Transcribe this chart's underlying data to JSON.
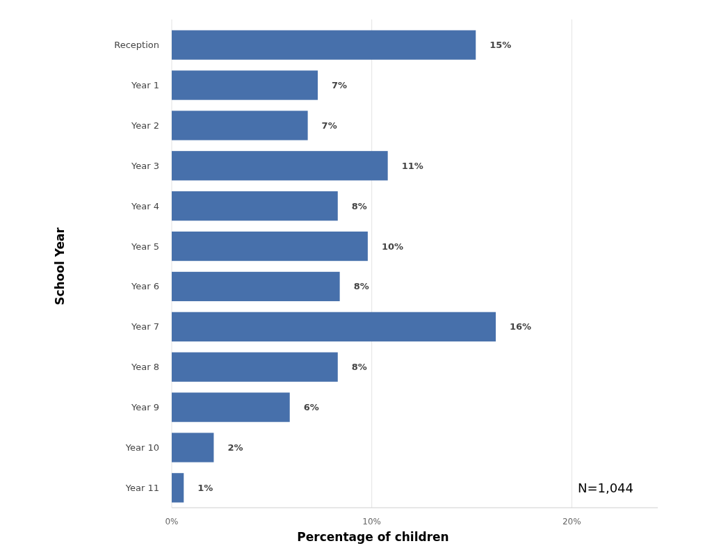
{
  "chart_data": {
    "type": "bar",
    "orientation": "horizontal",
    "xlabel": "Percentage of children",
    "ylabel": "School Year",
    "categories": [
      "Reception",
      "Year 1",
      "Year 2",
      "Year 3",
      "Year 4",
      "Year 5",
      "Year 6",
      "Year 7",
      "Year 8",
      "Year 9",
      "Year 10",
      "Year 11"
    ],
    "values": [
      15.2,
      7.3,
      6.8,
      10.8,
      8.3,
      9.8,
      8.4,
      16.2,
      8.3,
      5.9,
      2.1,
      0.6
    ],
    "value_labels": [
      "15%",
      "7%",
      "7%",
      "11%",
      "8%",
      "10%",
      "8%",
      "16%",
      "8%",
      "6%",
      "2%",
      "1%"
    ],
    "color": "#4770ab",
    "xlim": [
      0,
      24.3
    ],
    "xticks": [
      {
        "value": 0,
        "label": "0%"
      },
      {
        "value": 10,
        "label": "10%"
      },
      {
        "value": 20,
        "label": "20%"
      }
    ],
    "grid": "x",
    "annotations": [
      "N=1,044"
    ]
  }
}
